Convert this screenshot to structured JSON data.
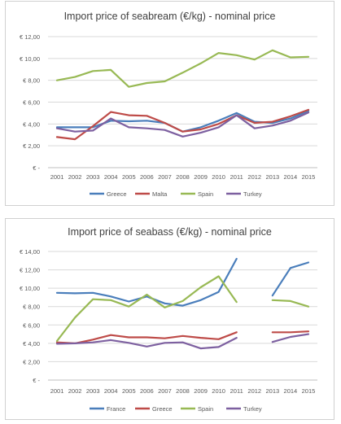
{
  "chart_data": [
    {
      "type": "line",
      "title": "Import price of seabream (€/kg) - nominal price",
      "xlabel": "",
      "ylabel": "",
      "x": [
        "2001",
        "2002",
        "2003",
        "2004",
        "2005",
        "2006",
        "2007",
        "2008",
        "2009",
        "2010",
        "2011",
        "2012",
        "2013",
        "2014",
        "2015"
      ],
      "ylim": [
        0,
        12
      ],
      "ytick_labels": [
        "€ -",
        "€ 2,00",
        "€ 4,00",
        "€ 6,00",
        "€ 8,00",
        "€ 10,00",
        "€ 12,00"
      ],
      "grid": true,
      "legend_position": "bottom",
      "series": [
        {
          "name": "Greece",
          "color": "#4a7ebb",
          "values": [
            3.7,
            3.7,
            3.7,
            4.3,
            4.25,
            4.3,
            4.1,
            3.3,
            3.7,
            4.3,
            5.0,
            4.2,
            4.1,
            4.5,
            5.2
          ]
        },
        {
          "name": "Malta",
          "color": "#be4b48",
          "values": [
            2.8,
            2.6,
            3.8,
            5.1,
            4.8,
            4.75,
            4.1,
            3.3,
            3.5,
            4.0,
            4.8,
            4.1,
            4.2,
            4.7,
            5.3
          ]
        },
        {
          "name": "Spain",
          "color": "#98b954",
          "values": [
            8.0,
            8.3,
            8.85,
            8.95,
            7.4,
            7.75,
            7.9,
            8.7,
            9.55,
            10.5,
            10.3,
            9.9,
            10.75,
            10.1,
            10.15
          ]
        },
        {
          "name": "Turkey",
          "color": "#7d60a0",
          "values": [
            3.6,
            3.3,
            3.4,
            4.5,
            3.7,
            3.6,
            3.45,
            2.85,
            3.2,
            3.7,
            4.8,
            3.6,
            3.85,
            4.3,
            5.05
          ]
        }
      ]
    },
    {
      "type": "line",
      "title": "Import price of seabass (€/kg) - nominal price",
      "xlabel": "",
      "ylabel": "",
      "x": [
        "2001",
        "2002",
        "2003",
        "2004",
        "2005",
        "2006",
        "2007",
        "2008",
        "2009",
        "2010",
        "2011",
        "2012",
        "2013",
        "2014",
        "2015"
      ],
      "ylim": [
        0,
        14
      ],
      "ytick_labels": [
        "€ -",
        "€ 2,00",
        "€ 4,00",
        "€ 6,00",
        "€ 8,00",
        "€ 10,00",
        "€ 12,00",
        "€ 14,00"
      ],
      "grid": true,
      "legend_position": "bottom",
      "series": [
        {
          "name": "France",
          "color": "#4a7ebb",
          "values": [
            9.5,
            9.45,
            9.5,
            9.1,
            8.55,
            9.1,
            8.35,
            8.1,
            8.7,
            9.6,
            13.2,
            null,
            9.2,
            12.2,
            12.8
          ]
        },
        {
          "name": "Greece",
          "color": "#be4b48",
          "values": [
            4.1,
            4.0,
            4.4,
            4.9,
            4.65,
            4.65,
            4.55,
            4.8,
            4.6,
            4.45,
            5.2,
            null,
            5.2,
            5.2,
            5.3
          ]
        },
        {
          "name": "Spain",
          "color": "#98b954",
          "values": [
            4.25,
            6.8,
            8.8,
            8.7,
            8.0,
            9.3,
            7.9,
            8.6,
            10.1,
            11.3,
            8.5,
            null,
            8.7,
            8.6,
            8.0
          ]
        },
        {
          "name": "Turkey",
          "color": "#7d60a0",
          "values": [
            3.95,
            4.0,
            4.1,
            4.35,
            4.05,
            3.65,
            4.05,
            4.1,
            3.45,
            3.6,
            4.6,
            null,
            4.15,
            4.7,
            5.0
          ]
        }
      ]
    }
  ]
}
